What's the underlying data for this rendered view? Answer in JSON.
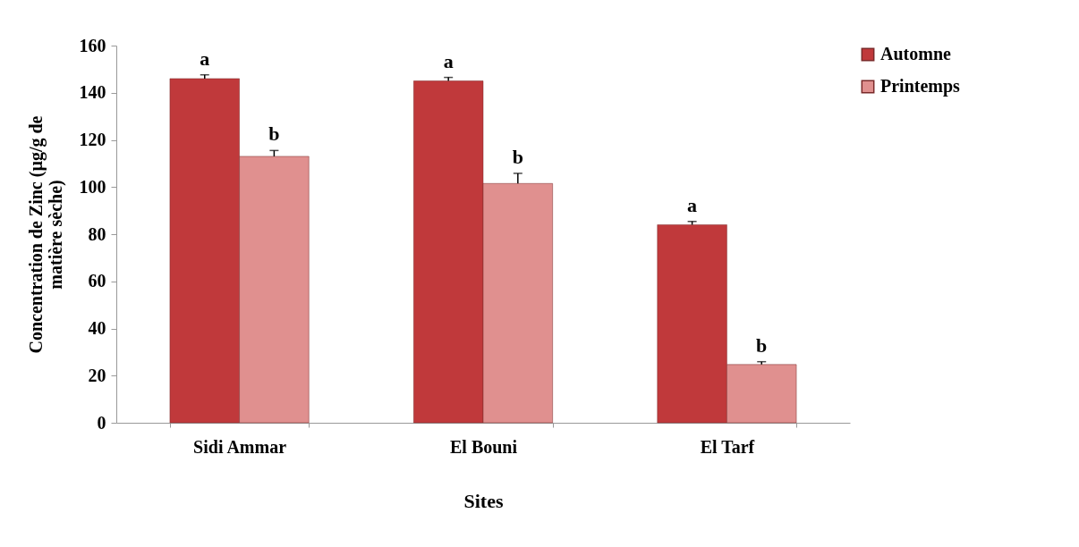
{
  "chart_data": {
    "type": "bar",
    "xlabel": "Sites",
    "ylabel": "Concentration de Zinc (µg/g de matière sèche)",
    "categories": [
      "Sidi Ammar",
      "El Bouni",
      "El Tarf"
    ],
    "series": [
      {
        "name": "Automne",
        "color": "#c0393b",
        "values": [
          146,
          145,
          84
        ],
        "errors": [
          1.6,
          1.5,
          1.4
        ]
      },
      {
        "name": "Printemps",
        "color": "#e0908f",
        "values": [
          113,
          101.5,
          24.7
        ],
        "errors": [
          2.5,
          4.3,
          1.2
        ]
      }
    ],
    "ylim": [
      0,
      160
    ],
    "yticks": [
      0,
      20,
      40,
      60,
      80,
      100,
      120,
      140,
      160
    ],
    "legend": "right",
    "grid": false,
    "annotations": [
      {
        "text": "a",
        "x": "Sidi Ammar",
        "y": 147.6
      },
      {
        "text": "b",
        "x": "Sidi Ammar",
        "y": 115.5
      },
      {
        "text": "a",
        "x": "El Bouni",
        "y": 146.5
      },
      {
        "text": "b",
        "x": "El Bouni",
        "y": 105.8
      },
      {
        "text": "a",
        "x": "El Tarf",
        "y": 85.4
      },
      {
        "text": "b",
        "x": "El Tarf",
        "y": 25.9
      }
    ]
  }
}
